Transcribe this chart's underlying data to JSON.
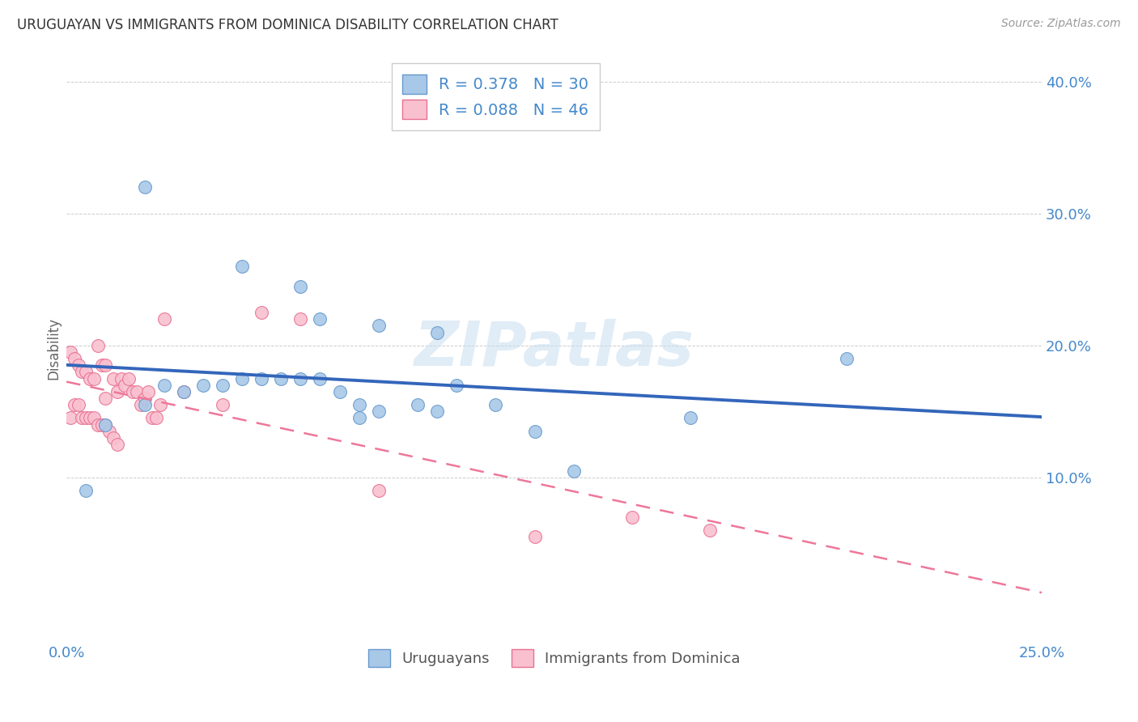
{
  "title": "URUGUAYAN VS IMMIGRANTS FROM DOMINICA DISABILITY CORRELATION CHART",
  "source": "Source: ZipAtlas.com",
  "ylabel_label": "Disability",
  "watermark": "ZIPatlas",
  "legend_r1": "0.378",
  "legend_n1": "30",
  "legend_r2": "0.088",
  "legend_n2": "46",
  "legend_label1": "Uruguayans",
  "legend_label2": "Immigrants from Dominica",
  "xlim": [
    0.0,
    0.25
  ],
  "ylim": [
    -0.025,
    0.42
  ],
  "xticks": [
    0.0,
    0.05,
    0.1,
    0.15,
    0.2,
    0.25
  ],
  "yticks": [
    0.1,
    0.2,
    0.3,
    0.4
  ],
  "ytick_labels": [
    "10.0%",
    "20.0%",
    "30.0%",
    "40.0%"
  ],
  "xtick_labels": [
    "0.0%",
    "",
    "",
    "",
    "",
    "25.0%"
  ],
  "color_blue": "#a8c8e8",
  "color_pink": "#f9c0d0",
  "edge_blue": "#6699cc",
  "edge_pink": "#e87090",
  "line_blue": "#3366bb",
  "line_pink": "#ee7799",
  "tick_color": "#4488cc",
  "blue_x": [
    0.02,
    0.045,
    0.06,
    0.065,
    0.08,
    0.095,
    0.005,
    0.01,
    0.02,
    0.025,
    0.03,
    0.035,
    0.04,
    0.045,
    0.05,
    0.055,
    0.06,
    0.065,
    0.07,
    0.075,
    0.08,
    0.09,
    0.095,
    0.1,
    0.11,
    0.13,
    0.16,
    0.2,
    0.12,
    0.075
  ],
  "blue_y": [
    0.32,
    0.26,
    0.245,
    0.22,
    0.215,
    0.21,
    0.09,
    0.14,
    0.155,
    0.17,
    0.165,
    0.17,
    0.17,
    0.175,
    0.175,
    0.175,
    0.175,
    0.175,
    0.165,
    0.155,
    0.15,
    0.155,
    0.15,
    0.17,
    0.155,
    0.105,
    0.145,
    0.19,
    0.135,
    0.145
  ],
  "pink_x": [
    0.001,
    0.002,
    0.003,
    0.004,
    0.005,
    0.006,
    0.007,
    0.008,
    0.009,
    0.01,
    0.01,
    0.012,
    0.013,
    0.014,
    0.015,
    0.016,
    0.017,
    0.018,
    0.019,
    0.02,
    0.021,
    0.022,
    0.023,
    0.024,
    0.001,
    0.002,
    0.003,
    0.004,
    0.005,
    0.006,
    0.007,
    0.008,
    0.009,
    0.01,
    0.011,
    0.012,
    0.013,
    0.025,
    0.03,
    0.04,
    0.05,
    0.06,
    0.08,
    0.12,
    0.145,
    0.165
  ],
  "pink_y": [
    0.195,
    0.19,
    0.185,
    0.18,
    0.18,
    0.175,
    0.175,
    0.2,
    0.185,
    0.185,
    0.16,
    0.175,
    0.165,
    0.175,
    0.17,
    0.175,
    0.165,
    0.165,
    0.155,
    0.16,
    0.165,
    0.145,
    0.145,
    0.155,
    0.145,
    0.155,
    0.155,
    0.145,
    0.145,
    0.145,
    0.145,
    0.14,
    0.14,
    0.14,
    0.135,
    0.13,
    0.125,
    0.22,
    0.165,
    0.155,
    0.225,
    0.22,
    0.09,
    0.055,
    0.07,
    0.06
  ]
}
